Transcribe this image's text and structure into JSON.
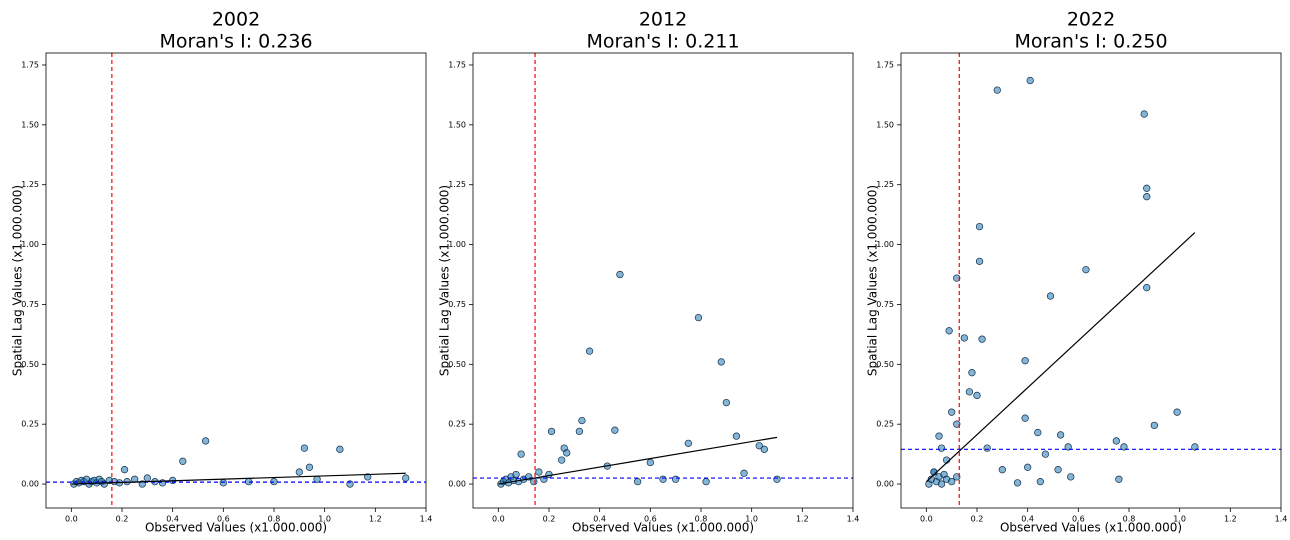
{
  "chart_data": [
    {
      "type": "scatter",
      "title": "2002",
      "subtitle": "Moran's I: 0.236",
      "xlabel": "Observed Values (x1.000.000)",
      "ylabel": "Spatial Lag Values (x1.000.000)",
      "xlim": [
        -0.1,
        1.4
      ],
      "ylim": [
        -0.1,
        1.8
      ],
      "xticks": [
        {
          "value": 0,
          "label": "0.0"
        },
        0.2,
        0.4,
        0.6,
        0.8,
        {
          "value": 1,
          "label": "1.0"
        },
        1.2,
        1.4
      ],
      "yticks": [
        {
          "value": 0,
          "label": "0.00"
        },
        0.25,
        {
          "value": 0.5,
          "label": "0.50"
        },
        0.75,
        {
          "value": 1,
          "label": "1.00"
        },
        1.25,
        {
          "value": 1.5,
          "label": "1.50"
        },
        1.75
      ],
      "color": "#1f77b4",
      "x": [
        0.01,
        0.02,
        0.03,
        0.04,
        0.05,
        0.06,
        0.07,
        0.08,
        0.09,
        0.1,
        0.11,
        0.12,
        0.13,
        0.15,
        0.17,
        0.19,
        0.22,
        0.25,
        0.28,
        0.3,
        0.33,
        0.36,
        0.4,
        0.21,
        0.44,
        0.53,
        0.6,
        0.7,
        0.8,
        0.9,
        0.92,
        0.94,
        0.97,
        1.06,
        1.1,
        1.17,
        1.32
      ],
      "values": [
        0.0,
        0.01,
        0.005,
        0.015,
        0.01,
        0.02,
        0.0,
        0.01,
        0.015,
        0.005,
        0.02,
        0.01,
        0.0,
        0.015,
        0.01,
        0.005,
        0.01,
        0.02,
        0.0,
        0.025,
        0.01,
        0.005,
        0.015,
        0.06,
        0.095,
        0.18,
        0.005,
        0.01,
        0.01,
        0.05,
        0.15,
        0.07,
        0.02,
        0.145,
        0.0,
        0.03,
        0.025
      ],
      "vline": 0.16,
      "hline": 0.008,
      "fit": {
        "x": [
          0,
          1.32
        ],
        "y": [
          0.0,
          0.045
        ]
      }
    },
    {
      "type": "scatter",
      "title": "2012",
      "subtitle": "Moran's I: 0.211",
      "xlabel": "Observed Values (x1.000.000)",
      "ylabel": "Spatial Lag Values (x1.000.000)",
      "xlim": [
        -0.1,
        1.4
      ],
      "ylim": [
        -0.1,
        1.8
      ],
      "xticks": [
        {
          "value": 0,
          "label": "0.0"
        },
        0.2,
        0.4,
        0.6,
        0.8,
        {
          "value": 1,
          "label": "1.0"
        },
        1.2,
        1.4
      ],
      "yticks": [
        {
          "value": 0,
          "label": "0.00"
        },
        0.25,
        {
          "value": 0.5,
          "label": "0.50"
        },
        0.75,
        {
          "value": 1,
          "label": "1.00"
        },
        1.25,
        {
          "value": 1.5,
          "label": "1.50"
        },
        1.75
      ],
      "color": "#1f77b4",
      "x": [
        0.01,
        0.02,
        0.03,
        0.04,
        0.05,
        0.06,
        0.07,
        0.08,
        0.1,
        0.12,
        0.14,
        0.16,
        0.18,
        0.2,
        0.09,
        0.21,
        0.25,
        0.26,
        0.27,
        0.32,
        0.33,
        0.36,
        0.43,
        0.46,
        0.48,
        0.55,
        0.6,
        0.65,
        0.7,
        0.75,
        0.79,
        0.82,
        0.88,
        0.9,
        0.94,
        0.97,
        1.03,
        1.05,
        1.1
      ],
      "values": [
        0.0,
        0.01,
        0.02,
        0.005,
        0.03,
        0.015,
        0.04,
        0.01,
        0.02,
        0.03,
        0.01,
        0.05,
        0.02,
        0.04,
        0.125,
        0.22,
        0.1,
        0.15,
        0.13,
        0.22,
        0.265,
        0.555,
        0.075,
        0.225,
        0.875,
        0.01,
        0.09,
        0.02,
        0.02,
        0.17,
        0.695,
        0.01,
        0.51,
        0.34,
        0.2,
        0.045,
        0.16,
        0.145,
        0.02
      ],
      "vline": 0.145,
      "hline": 0.025,
      "fit": {
        "x": [
          0,
          1.1
        ],
        "y": [
          0.0,
          0.195
        ]
      }
    },
    {
      "type": "scatter",
      "title": "2022",
      "subtitle": "Moran's I: 0.250",
      "xlabel": "Observed Values (x1.000.000)",
      "ylabel": "Spatial Lag Values (x1.000.000)",
      "xlim": [
        -0.1,
        1.4
      ],
      "ylim": [
        -0.1,
        1.8
      ],
      "xticks": [
        {
          "value": 0,
          "label": "0.0"
        },
        0.2,
        0.4,
        0.6,
        0.8,
        {
          "value": 1,
          "label": "1.0"
        },
        1.2,
        1.4
      ],
      "yticks": [
        {
          "value": 0,
          "label": "0.00"
        },
        0.25,
        {
          "value": 0.5,
          "label": "0.50"
        },
        0.75,
        {
          "value": 1,
          "label": "1.00"
        },
        1.25,
        {
          "value": 1.5,
          "label": "1.50"
        },
        1.75
      ],
      "color": "#1f77b4",
      "x": [
        0.01,
        0.02,
        0.03,
        0.04,
        0.05,
        0.06,
        0.07,
        0.08,
        0.1,
        0.12,
        0.03,
        0.05,
        0.06,
        0.08,
        0.1,
        0.12,
        0.09,
        0.12,
        0.15,
        0.17,
        0.18,
        0.2,
        0.21,
        0.21,
        0.22,
        0.24,
        0.28,
        0.3,
        0.36,
        0.39,
        0.39,
        0.4,
        0.41,
        0.44,
        0.45,
        0.47,
        0.49,
        0.52,
        0.53,
        0.56,
        0.57,
        0.63,
        0.75,
        0.76,
        0.78,
        0.86,
        0.87,
        0.87,
        0.87,
        0.9,
        0.99,
        1.06
      ],
      "values": [
        0.0,
        0.02,
        0.05,
        0.01,
        0.03,
        0.0,
        0.04,
        0.02,
        0.01,
        0.03,
        0.05,
        0.2,
        0.15,
        0.1,
        0.3,
        0.25,
        0.64,
        0.86,
        0.61,
        0.385,
        0.465,
        0.37,
        1.075,
        0.93,
        0.605,
        0.15,
        1.645,
        0.06,
        0.005,
        0.515,
        0.275,
        0.07,
        1.685,
        0.215,
        0.01,
        0.125,
        0.785,
        0.06,
        0.205,
        0.155,
        0.03,
        0.895,
        0.18,
        0.02,
        0.155,
        1.545,
        1.235,
        1.2,
        0.82,
        0.245,
        0.3,
        0.155
      ],
      "vline": 0.13,
      "hline": 0.145,
      "fit": {
        "x": [
          0,
          1.06
        ],
        "y": [
          0.01,
          1.05
        ]
      }
    }
  ]
}
